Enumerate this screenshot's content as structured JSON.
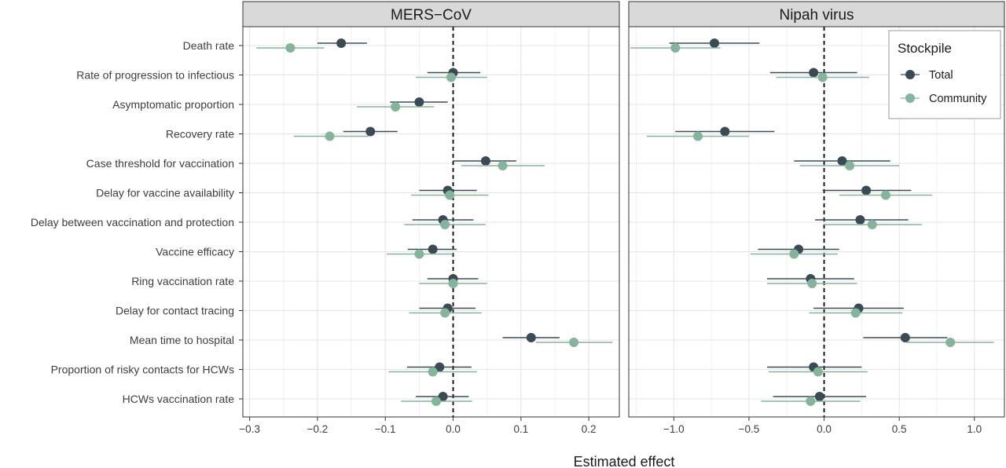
{
  "chart_data": {
    "type": "scatter",
    "xlabel": "Estimated effect",
    "grid": true,
    "legend": {
      "title": "Stockpile",
      "placement": "top-right",
      "entries": [
        {
          "name": "Total",
          "color": "#3b4b55"
        },
        {
          "name": "Community",
          "color": "#86b39b"
        }
      ]
    },
    "categories": [
      "Death rate",
      "Rate of progression to infectious",
      "Asymptomatic proportion",
      "Recovery rate",
      "Case threshold for vaccination",
      "Delay for vaccine availability",
      "Delay between vaccination and protection",
      "Vaccine efficacy",
      "Ring vaccination rate",
      "Delay for contact tracing",
      "Mean time to hospital",
      "Proportion of risky contacts for HCWs",
      "HCWs vaccination rate"
    ],
    "panels": [
      {
        "title": "MERS−CoV",
        "xlim": [
          -0.31,
          0.245
        ],
        "xticks": [
          -0.3,
          -0.2,
          -0.1,
          0.0,
          0.1,
          0.2
        ],
        "xtick_labels": [
          "−0.3",
          "−0.2",
          "−0.1",
          "0.0",
          "0.1",
          "0.2"
        ],
        "reference_line": 0,
        "series": [
          {
            "name": "Total",
            "estimate": [
              -0.165,
              0.0,
              -0.05,
              -0.122,
              0.048,
              -0.008,
              -0.015,
              -0.03,
              0.0,
              -0.008,
              0.115,
              -0.02,
              -0.015
            ],
            "lower": [
              -0.2,
              -0.038,
              -0.093,
              -0.162,
              0.0,
              -0.05,
              -0.06,
              -0.067,
              -0.038,
              -0.05,
              0.073,
              -0.068,
              -0.055
            ],
            "upper": [
              -0.127,
              0.04,
              -0.008,
              -0.082,
              0.093,
              0.035,
              0.03,
              0.005,
              0.037,
              0.033,
              0.157,
              0.027,
              0.023
            ]
          },
          {
            "name": "Community",
            "estimate": [
              -0.24,
              -0.003,
              -0.085,
              -0.182,
              0.073,
              -0.005,
              -0.012,
              -0.05,
              0.0,
              -0.012,
              0.178,
              -0.03,
              -0.025
            ],
            "lower": [
              -0.29,
              -0.055,
              -0.142,
              -0.235,
              0.012,
              -0.062,
              -0.072,
              -0.098,
              -0.05,
              -0.065,
              0.122,
              -0.095,
              -0.077
            ],
            "upper": [
              -0.19,
              0.05,
              -0.028,
              -0.125,
              0.135,
              0.052,
              0.048,
              0.0,
              0.05,
              0.042,
              0.235,
              0.035,
              0.028
            ]
          }
        ]
      },
      {
        "title": "Nipah virus",
        "xlim": [
          -1.3,
          1.2
        ],
        "xticks": [
          -1.0,
          -0.5,
          0.0,
          0.5,
          1.0
        ],
        "xtick_labels": [
          "−1.0",
          "−0.5",
          "0.0",
          "0.5",
          "1.0"
        ],
        "reference_line": 0,
        "series": [
          {
            "name": "Total",
            "estimate": [
              -0.73,
              -0.07,
              null,
              -0.66,
              0.12,
              0.28,
              0.24,
              -0.17,
              -0.09,
              0.23,
              0.54,
              -0.07,
              -0.03
            ],
            "lower": [
              -1.03,
              -0.36,
              null,
              -0.99,
              -0.2,
              -0.01,
              -0.06,
              -0.44,
              -0.38,
              -0.07,
              0.26,
              -0.38,
              -0.34
            ],
            "upper": [
              -0.43,
              0.22,
              null,
              -0.33,
              0.44,
              0.58,
              0.56,
              0.1,
              0.2,
              0.53,
              0.82,
              0.25,
              0.28
            ]
          },
          {
            "name": "Community",
            "estimate": [
              -0.99,
              -0.01,
              null,
              -0.84,
              0.17,
              0.41,
              0.32,
              -0.2,
              -0.08,
              0.21,
              0.84,
              -0.04,
              -0.09
            ],
            "lower": [
              -1.29,
              -0.32,
              null,
              -1.18,
              -0.16,
              0.1,
              0.0,
              -0.49,
              -0.38,
              -0.1,
              0.55,
              -0.37,
              -0.42
            ],
            "upper": [
              -0.69,
              0.3,
              null,
              -0.5,
              0.5,
              0.72,
              0.65,
              0.09,
              0.22,
              0.52,
              1.13,
              0.29,
              0.24
            ]
          }
        ]
      }
    ]
  }
}
